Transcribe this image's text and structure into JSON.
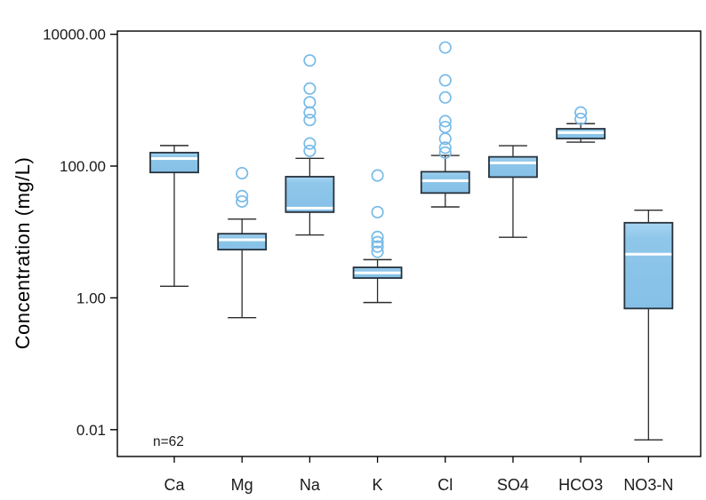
{
  "chart_data": {
    "type": "boxplot",
    "title": "",
    "xlabel": "",
    "ylabel": "Concentration (mg/L)",
    "annotation": "n=62",
    "y_scale": "log10",
    "ylim": [
      0.004,
      11000
    ],
    "grid": false,
    "legend": false,
    "y_ticks": [
      {
        "value": 0.01,
        "label": "0.01"
      },
      {
        "value": 1,
        "label": "1.00"
      },
      {
        "value": 100,
        "label": "100.00"
      },
      {
        "value": 10000,
        "label": "10000.00"
      }
    ],
    "categories": [
      "Ca",
      "Mg",
      "Na",
      "K",
      "Cl",
      "SO4",
      "HCO3",
      "NO3-N"
    ],
    "series": [
      {
        "name": "Ca",
        "whisker_low": 1.5,
        "q1": 80,
        "median": 130,
        "q3": 160,
        "whisker_high": 205,
        "outliers": []
      },
      {
        "name": "Mg",
        "whisker_low": 0.5,
        "q1": 5.4,
        "median": 7.6,
        "q3": 9.4,
        "whisker_high": 15.7,
        "outliers": [
          78,
          35,
          29
        ]
      },
      {
        "name": "Na",
        "whisker_low": 9,
        "q1": 20,
        "median": 23,
        "q3": 69,
        "whisker_high": 131,
        "outliers": [
          4000,
          1500,
          930,
          650,
          500,
          220,
          170
        ]
      },
      {
        "name": "K",
        "whisker_low": 0.85,
        "q1": 2.0,
        "median": 2.4,
        "q3": 2.9,
        "whisker_high": 3.8,
        "outliers": [
          72,
          20,
          8.4,
          7.0,
          6.0,
          5.0
        ]
      },
      {
        "name": "Cl",
        "whisker_low": 24,
        "q1": 39,
        "median": 60,
        "q3": 82,
        "whisker_high": 145,
        "outliers": [
          6300,
          2000,
          1100,
          480,
          390,
          260,
          190,
          160
        ]
      },
      {
        "name": "SO4",
        "whisker_low": 8.3,
        "q1": 68,
        "median": 112,
        "q3": 138,
        "whisker_high": 204,
        "outliers": []
      },
      {
        "name": "HCO3",
        "whisker_low": 231,
        "q1": 262,
        "median": 322,
        "q3": 368,
        "whisker_high": 440,
        "outliers": [
          520,
          650
        ]
      },
      {
        "name": "NO3-N",
        "whisker_low": 0.007,
        "q1": 0.69,
        "median": 4.6,
        "q3": 13.8,
        "whisker_high": 21.4,
        "outliers": []
      }
    ],
    "colors": {
      "box_fill": "#8FC7EA",
      "box_fill_light": "#A8D5F2",
      "box_border": "#26323C",
      "median": "#FFFFFF",
      "whisker": "#2B2B2B",
      "outlier": "#77BAE8",
      "axis": "#000000",
      "text": "#1A1A1A"
    }
  }
}
